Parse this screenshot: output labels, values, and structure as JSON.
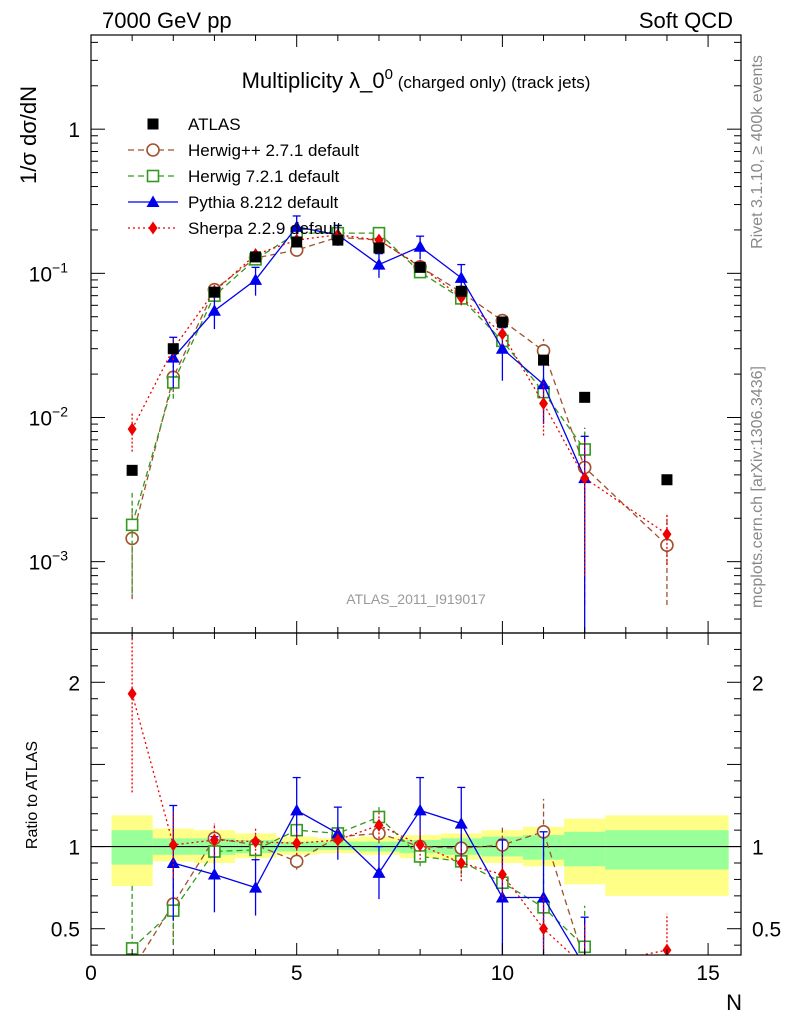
{
  "header": {
    "left": "7000 GeV pp",
    "right": "Soft QCD"
  },
  "side_labels": {
    "rivet": "Rivet 3.1.10, ≥ 400k events",
    "mcplots": "mcplots.cern.ch [arXiv:1306.3436]"
  },
  "analysis_id": "ATLAS_2011_I919017",
  "chart_data": [
    {
      "type": "scatter",
      "panel": "main",
      "title": "Multiplicity λ_0^0 (charged only) (track jets)",
      "title_parts": {
        "main": "Multiplicity λ_0",
        "sup": "0",
        "tail": " (charged only) (track jets)"
      },
      "xlabel": "N",
      "ylabel": "1/σ dσ/dN",
      "yscale": "log",
      "xlim": [
        0,
        15.8
      ],
      "ylim": [
        0.00032,
        4.5
      ],
      "yticks": [
        {
          "value": 0.001,
          "base": "10",
          "exp": "−3"
        },
        {
          "value": 0.01,
          "base": "10",
          "exp": "−2"
        },
        {
          "value": 0.1,
          "base": "10",
          "exp": "−1"
        },
        {
          "value": 1,
          "base": "1",
          "exp": ""
        }
      ],
      "legend_position": "top-left",
      "series": [
        {
          "name": "ATLAS",
          "color": "#000000",
          "marker": "filled-square",
          "line": "none",
          "x": [
            1,
            2,
            3,
            4,
            5,
            6,
            7,
            8,
            9,
            10,
            11,
            12,
            14
          ],
          "y": [
            0.0043,
            0.03,
            0.074,
            0.13,
            0.165,
            0.17,
            0.15,
            0.11,
            0.075,
            0.046,
            0.025,
            0.0138,
            0.0037
          ]
        },
        {
          "name": "Herwig++ 2.7.1 default",
          "color": "#a0522d",
          "marker": "open-circle",
          "line": "dashed",
          "x": [
            1,
            2,
            3,
            4,
            5,
            6,
            7,
            8,
            9,
            10,
            11,
            12,
            14
          ],
          "y": [
            0.00145,
            0.019,
            0.077,
            0.128,
            0.145,
            0.178,
            0.17,
            0.111,
            0.074,
            0.047,
            0.029,
            0.0045,
            0.0013
          ],
          "err": [
            0.0009,
            0.004,
            0.006,
            0.008,
            0.009,
            0.01,
            0.01,
            0.008,
            0.007,
            0.006,
            0.006,
            0.004,
            0.0008
          ]
        },
        {
          "name": "Herwig 7.2.1 default",
          "color": "#339a1f",
          "marker": "open-square",
          "line": "dashed",
          "x": [
            1,
            2,
            3,
            4,
            5,
            6,
            7,
            8,
            9,
            10,
            11,
            12
          ],
          "y": [
            0.0018,
            0.0175,
            0.07,
            0.125,
            0.19,
            0.19,
            0.19,
            0.102,
            0.067,
            0.034,
            0.015,
            0.006
          ],
          "err": [
            0.0012,
            0.004,
            0.006,
            0.008,
            0.01,
            0.01,
            0.01,
            0.008,
            0.006,
            0.005,
            0.004,
            0.002
          ]
        },
        {
          "name": "Pythia 8.212 default",
          "color": "#0000ee",
          "marker": "filled-triangle",
          "line": "solid",
          "x": [
            2,
            3,
            4,
            5,
            6,
            7,
            8,
            9,
            10,
            11,
            12
          ],
          "y": [
            0.026,
            0.055,
            0.09,
            0.21,
            0.185,
            0.115,
            0.153,
            0.093,
            0.03,
            0.017,
            0.0038
          ],
          "err": [
            0.01,
            0.014,
            0.02,
            0.04,
            0.03,
            0.022,
            0.028,
            0.022,
            0.012,
            0.008,
            0.0036
          ]
        },
        {
          "name": "Sherpa 2.2.9 default",
          "color": "#ee0000",
          "marker": "filled-diamond",
          "line": "dotted",
          "x": [
            1,
            2,
            3,
            4,
            5,
            6,
            7,
            8,
            9,
            10,
            11,
            12,
            14
          ],
          "y": [
            0.0083,
            0.03,
            0.075,
            0.135,
            0.17,
            0.185,
            0.17,
            0.112,
            0.068,
            0.038,
            0.0125,
            0.0038,
            0.00155
          ],
          "err": [
            0.0025,
            0.005,
            0.008,
            0.01,
            0.012,
            0.012,
            0.012,
            0.01,
            0.008,
            0.006,
            0.005,
            0.003,
            0.0006
          ]
        }
      ]
    },
    {
      "type": "scatter",
      "panel": "ratio",
      "xlabel": "N",
      "ylabel": "Ratio to ATLAS",
      "yscale": "linear",
      "xlim": [
        0,
        15.8
      ],
      "ylim": [
        0.34,
        2.3
      ],
      "yticks": [
        0.5,
        1,
        2
      ],
      "xticks": [
        0,
        5,
        10,
        15
      ],
      "bands": [
        {
          "name": "ATLAS total uncertainty",
          "color": "#ffff88",
          "x_edges": [
            [
              0.5,
              1.5
            ],
            [
              1.5,
              2.5
            ],
            [
              2.5,
              3.5
            ],
            [
              3.5,
              4.5
            ],
            [
              4.5,
              5.5
            ],
            [
              5.5,
              6.5
            ],
            [
              6.5,
              7.5
            ],
            [
              7.5,
              8.5
            ],
            [
              8.5,
              9.5
            ],
            [
              9.5,
              10.5
            ],
            [
              10.5,
              11.5
            ],
            [
              11.5,
              12.5
            ],
            [
              12.5,
              15.5
            ]
          ],
          "lo": [
            0.76,
            0.91,
            0.9,
            0.93,
            0.95,
            0.96,
            0.95,
            0.93,
            0.92,
            0.9,
            0.88,
            0.77,
            0.7
          ],
          "hi": [
            1.19,
            1.11,
            1.1,
            1.08,
            1.06,
            1.05,
            1.06,
            1.07,
            1.08,
            1.1,
            1.12,
            1.17,
            1.19
          ]
        },
        {
          "name": "ATLAS stat uncertainty",
          "color": "#99ff99",
          "x_edges": [
            [
              0.5,
              1.5
            ],
            [
              1.5,
              2.5
            ],
            [
              2.5,
              3.5
            ],
            [
              3.5,
              4.5
            ],
            [
              4.5,
              5.5
            ],
            [
              5.5,
              6.5
            ],
            [
              6.5,
              7.5
            ],
            [
              7.5,
              8.5
            ],
            [
              8.5,
              9.5
            ],
            [
              9.5,
              10.5
            ],
            [
              10.5,
              11.5
            ],
            [
              11.5,
              12.5
            ],
            [
              12.5,
              15.5
            ]
          ],
          "lo": [
            0.89,
            0.95,
            0.95,
            0.96,
            0.97,
            0.98,
            0.97,
            0.96,
            0.95,
            0.94,
            0.92,
            0.88,
            0.86
          ],
          "hi": [
            1.1,
            1.05,
            1.05,
            1.04,
            1.03,
            1.03,
            1.03,
            1.04,
            1.05,
            1.06,
            1.07,
            1.09,
            1.1
          ]
        }
      ],
      "series": [
        {
          "name": "Herwig++ 2.7.1 default",
          "color": "#a0522d",
          "marker": "open-circle",
          "line": "dashed",
          "x": [
            1,
            2,
            3,
            4,
            5,
            6,
            7,
            8,
            9,
            10,
            11,
            12
          ],
          "y": [
            0.25,
            0.65,
            1.05,
            1.01,
            0.91,
            1.06,
            1.08,
            1.0,
            0.99,
            1.01,
            1.09,
            0.3
          ],
          "err": [
            0.2,
            0.25,
            0.08,
            0.06,
            0.05,
            0.05,
            0.06,
            0.07,
            0.09,
            0.12,
            0.2,
            0.25
          ]
        },
        {
          "name": "Herwig 7.2.1 default",
          "color": "#339a1f",
          "marker": "open-square",
          "line": "dashed",
          "x": [
            1,
            2,
            3,
            4,
            5,
            6,
            7,
            8,
            9,
            10,
            11,
            12
          ],
          "y": [
            0.38,
            0.61,
            0.97,
            0.98,
            1.1,
            1.08,
            1.18,
            0.94,
            0.91,
            0.78,
            0.63,
            0.39
          ],
          "err": [
            0.4,
            0.2,
            0.08,
            0.06,
            0.05,
            0.05,
            0.06,
            0.06,
            0.08,
            0.1,
            0.2,
            0.25
          ]
        },
        {
          "name": "Pythia 8.212 default",
          "color": "#0000ee",
          "marker": "filled-triangle",
          "line": "solid",
          "x": [
            2,
            3,
            4,
            5,
            6,
            7,
            8,
            9,
            10,
            11,
            12
          ],
          "y": [
            0.9,
            0.83,
            0.75,
            1.22,
            1.08,
            0.84,
            1.22,
            1.14,
            0.69,
            0.69,
            0.27
          ],
          "err": [
            0.35,
            0.23,
            0.17,
            0.2,
            0.16,
            0.16,
            0.2,
            0.22,
            0.35,
            0.4,
            0.3
          ]
        },
        {
          "name": "Sherpa 2.2.9 default",
          "color": "#ee0000",
          "marker": "filled-diamond",
          "line": "dotted",
          "x": [
            1,
            2,
            3,
            4,
            5,
            6,
            7,
            8,
            9,
            10,
            11,
            12,
            14
          ],
          "y": [
            1.93,
            1.01,
            1.04,
            1.03,
            1.02,
            1.04,
            1.13,
            1.01,
            0.9,
            0.83,
            0.5,
            0.27,
            0.37
          ],
          "err": [
            0.6,
            0.2,
            0.1,
            0.08,
            0.07,
            0.07,
            0.08,
            0.09,
            0.11,
            0.15,
            0.2,
            0.25,
            0.22
          ]
        }
      ]
    }
  ]
}
